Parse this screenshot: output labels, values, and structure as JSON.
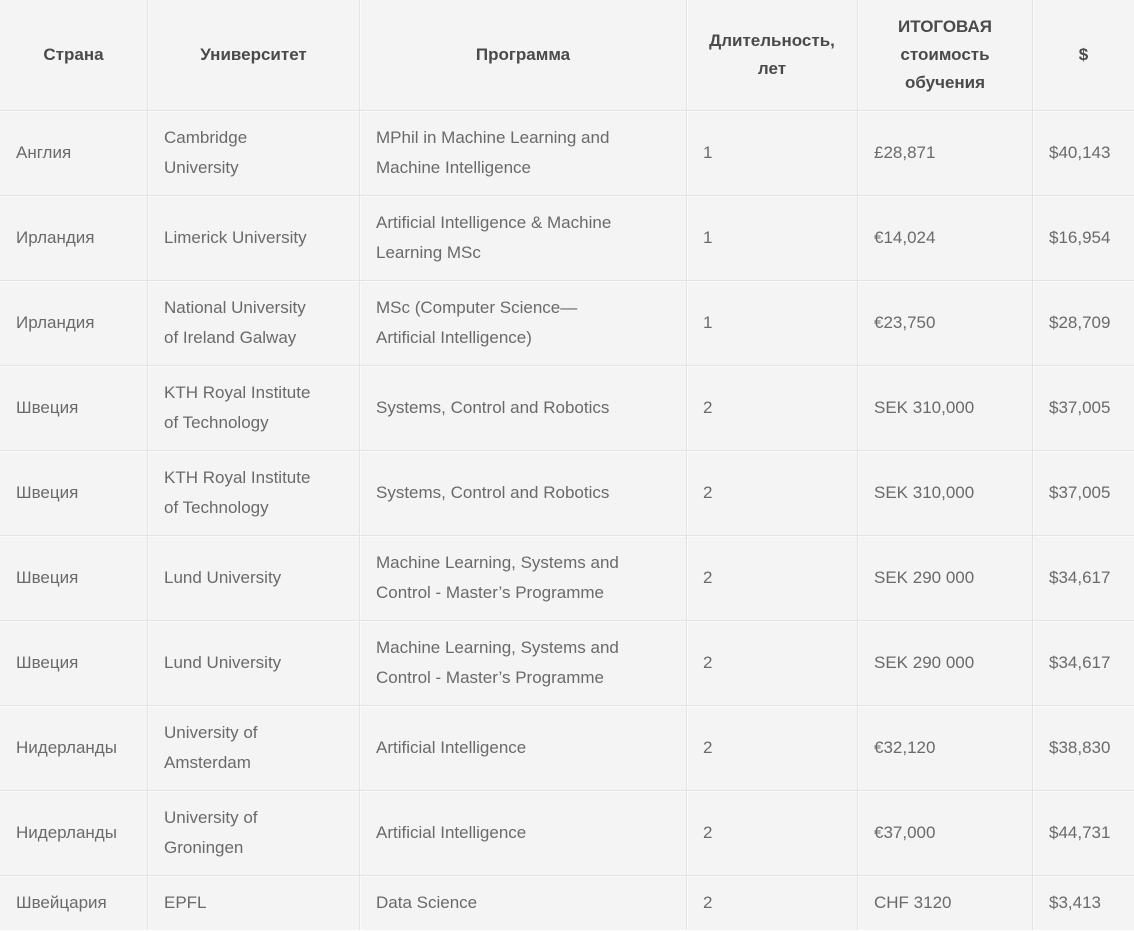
{
  "chart_data": {
    "type": "table",
    "title": "",
    "columns": [
      {
        "key": "country",
        "label": "Страна"
      },
      {
        "key": "university",
        "label": "Университет"
      },
      {
        "key": "program",
        "label": "Программа"
      },
      {
        "key": "duration",
        "label": "Длительность,\nлет"
      },
      {
        "key": "cost",
        "label": "ИТОГОВАЯ\nстоимость\nобучения"
      },
      {
        "key": "usd",
        "label": "$"
      }
    ],
    "rows": [
      {
        "country": "Англия",
        "university": "Cambridge\nUniversity",
        "program": "MPhil in Machine Learning and\nMachine Intelligence",
        "duration": "1",
        "cost": "£28,871",
        "usd": "$40,143"
      },
      {
        "country": "Ирландия",
        "university": "Limerick University",
        "program": "Artificial Intelligence & Machine\nLearning MSc",
        "duration": "1",
        "cost": "€14,024",
        "usd": "$16,954"
      },
      {
        "country": "Ирландия",
        "university": "National University\nof Ireland Galway",
        "program": "MSc (Computer Science—\nArtificial Intelligence)",
        "duration": "1",
        "cost": "€23,750",
        "usd": "$28,709"
      },
      {
        "country": "Швеция",
        "university": "KTH Royal Institute\nof Technology",
        "program": "Systems, Control and Robotics",
        "duration": "2",
        "cost": "SEK 310,000",
        "usd": "$37,005"
      },
      {
        "country": "Швеция",
        "university": "KTH Royal Institute\nof Technology",
        "program": "Systems, Control and Robotics",
        "duration": "2",
        "cost": "SEK 310,000",
        "usd": "$37,005"
      },
      {
        "country": "Швеция",
        "university": "Lund University",
        "program": "Machine Learning, Systems and\nControl - Master’s Programme",
        "duration": "2",
        "cost": "SEK 290 000",
        "usd": "$34,617"
      },
      {
        "country": "Швеция",
        "university": "Lund University",
        "program": "Machine Learning, Systems and\nControl - Master’s Programme",
        "duration": "2",
        "cost": "SEK 290 000",
        "usd": "$34,617"
      },
      {
        "country": "Нидерланды",
        "university": "University of\nAmsterdam",
        "program": "Artificial Intelligence",
        "duration": "2",
        "cost": "€32,120",
        "usd": "$38,830"
      },
      {
        "country": "Нидерланды",
        "university": "University of\nGroningen",
        "program": "Artificial Intelligence",
        "duration": "2",
        "cost": "€37,000",
        "usd": "$44,731"
      },
      {
        "country": "Швейцария",
        "university": "EPFL",
        "program": "Data Science",
        "duration": "2",
        "cost": "CHF 3120",
        "usd": "$3,413"
      }
    ]
  },
  "colors": {
    "page_bg": "#ffffff",
    "cell_bg": "#f4f4f4",
    "grid_dark": "#e3e3e3",
    "grid_light": "#fbfbfb",
    "header_text": "#4a4a4a",
    "body_text": "#6a6a6a"
  }
}
